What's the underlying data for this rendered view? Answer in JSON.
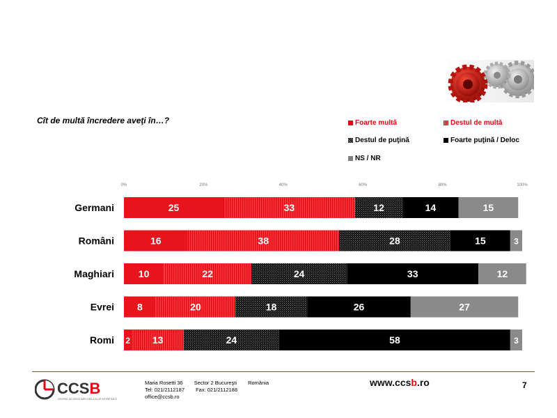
{
  "question": "Cît de multă încredere aveţi în…?",
  "legend": [
    {
      "label": "Foarte multă",
      "color": "#e30613",
      "label_color": "#e30613",
      "pattern": "solid"
    },
    {
      "label": "Destul de multă",
      "color": "#e30613",
      "label_color": "#e30613",
      "pattern": "stripes"
    },
    {
      "label": "Destul de puţină",
      "color": "#222222",
      "label_color": "#000000",
      "pattern": "dots"
    },
    {
      "label": "Foarte puţină / Deloc",
      "color": "#000000",
      "label_color": "#000000",
      "pattern": "solid"
    },
    {
      "label": "NS / NR",
      "color": "#808080",
      "label_color": "#000000",
      "pattern": "solid"
    }
  ],
  "chart_data": {
    "type": "bar",
    "orientation": "horizontal-stacked-100",
    "x_ticks": [
      "0%",
      "20%",
      "40%",
      "60%",
      "80%",
      "100%"
    ],
    "xlim": [
      0,
      100
    ],
    "categories": [
      "Germani",
      "Români",
      "Maghiari",
      "Evrei",
      "Romi"
    ],
    "series": [
      {
        "name": "Foarte multă",
        "values": [
          25,
          16,
          10,
          8,
          2
        ],
        "color": "#e8141c",
        "pattern": "solid"
      },
      {
        "name": "Destul de multă",
        "values": [
          33,
          38,
          22,
          20,
          13
        ],
        "color": "#ef2a2f",
        "pattern": "stripes"
      },
      {
        "name": "Destul de puţină",
        "values": [
          12,
          28,
          24,
          18,
          24
        ],
        "color": "#2a2a2a",
        "pattern": "dots"
      },
      {
        "name": "Foarte puţină / Deloc",
        "values": [
          14,
          15,
          33,
          26,
          58
        ],
        "color": "#000000",
        "pattern": "solid"
      },
      {
        "name": "NS / NR",
        "values": [
          15,
          3,
          12,
          27,
          3
        ],
        "color": "#8a8a8a",
        "pattern": "solid"
      }
    ]
  },
  "footer": {
    "address_line1": [
      "Maria Rosetti 36",
      "Sector 2  Bucureşti",
      "România"
    ],
    "address_line2": [
      "Tel: 021/2112187",
      "Fax: 021/2112188"
    ],
    "email": "office@ccsb.ro",
    "website_prefix": "www.ccs",
    "website_accent": "b",
    "website_suffix": ".ro",
    "website_accent_color": "#e30613",
    "page_number": "7",
    "logo_text_prefix": "CCS",
    "logo_text_accent": "B",
    "logo_subtext": "CENTRUL DE CERCETARE A RELAȚIILOR INTERETNICE"
  }
}
